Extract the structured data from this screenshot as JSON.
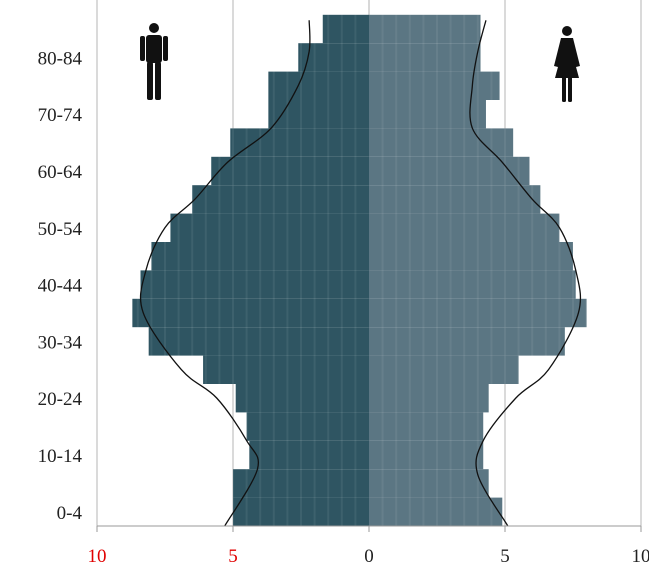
{
  "chart_data": {
    "type": "bar",
    "orientation": "horizontal-population-pyramid",
    "bar_colors": {
      "male": "#2f5562",
      "female": "#5b7683"
    },
    "x_tick_labels": [
      "10",
      "5",
      "0",
      "5",
      "10"
    ],
    "x_tick_label_colors": [
      "#e00000",
      "#e00000",
      "#222222",
      "#222222",
      "#222222"
    ],
    "xlim": [
      -10,
      10
    ],
    "y_tick_labels": [
      "80-84",
      "70-74",
      "60-64",
      "50-54",
      "40-44",
      "30-34",
      "20-24",
      "10-14",
      "0-4"
    ],
    "age_groups": [
      "0-4",
      "5-9",
      "10-14",
      "15-19",
      "20-24",
      "25-29",
      "30-34",
      "35-39",
      "40-44",
      "45-49",
      "50-54",
      "55-59",
      "60-64",
      "65-69",
      "70-74",
      "75-79",
      "80-84",
      "85+"
    ],
    "series": [
      {
        "values": [
          5.0,
          5.0,
          4.4,
          4.5,
          4.9,
          6.1,
          8.1,
          8.7,
          8.4,
          8.0,
          7.3,
          6.5,
          5.8,
          5.1,
          3.7,
          3.7,
          2.6,
          1.7
        ]
      },
      {
        "values": [
          4.9,
          4.4,
          4.2,
          4.2,
          4.4,
          5.5,
          7.2,
          8.0,
          7.6,
          7.5,
          7.0,
          6.3,
          5.9,
          5.3,
          4.3,
          4.8,
          4.1,
          4.1
        ]
      }
    ],
    "curves": {
      "male_points": [
        [
          -5.3,
          0
        ],
        [
          -4.1,
          2
        ],
        [
          -4.5,
          3
        ],
        [
          -5.6,
          4.5
        ],
        [
          -6.9,
          5.5
        ],
        [
          -8.3,
          7.5
        ],
        [
          -8.2,
          9
        ],
        [
          -7.5,
          10.5
        ],
        [
          -6.4,
          11.5
        ],
        [
          -5.2,
          12.8
        ],
        [
          -3.6,
          14
        ],
        [
          -2.6,
          15.5
        ],
        [
          -2.2,
          16.7
        ],
        [
          -2.2,
          17.8
        ]
      ],
      "female_points": [
        [
          5.1,
          0
        ],
        [
          4.0,
          1.8
        ],
        [
          4.2,
          3
        ],
        [
          5.4,
          4.5
        ],
        [
          6.6,
          5.5
        ],
        [
          7.7,
          7.5
        ],
        [
          7.6,
          9
        ],
        [
          7.0,
          10.5
        ],
        [
          6.0,
          11.5
        ],
        [
          4.9,
          12.8
        ],
        [
          3.8,
          14
        ],
        [
          3.8,
          15.5
        ],
        [
          4.0,
          16.7
        ],
        [
          4.3,
          17.8
        ]
      ]
    },
    "grid": true,
    "icons": {
      "left": "male-icon",
      "right": "female-icon"
    }
  }
}
